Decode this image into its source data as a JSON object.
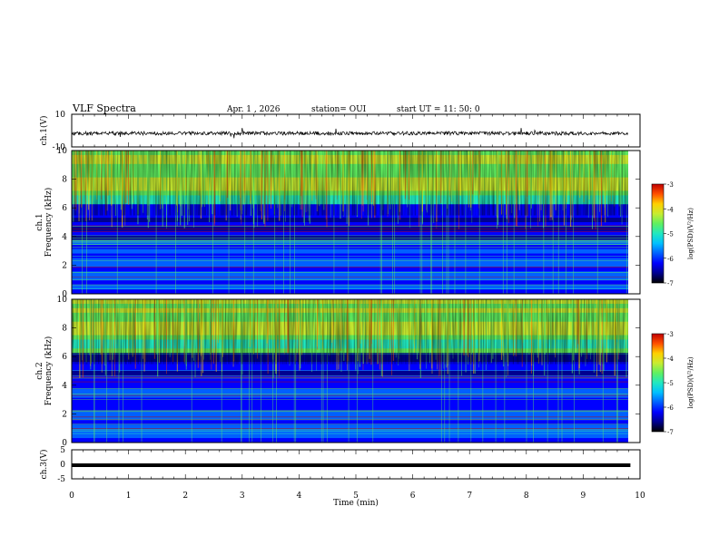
{
  "header": {
    "title": "VLF Spectra",
    "date": "Apr. 1 , 2026",
    "station": "station= OUI",
    "start": "start UT =  11: 50: 0"
  },
  "colors": {
    "colormap": [
      "#000000",
      "#00008f",
      "#0000ff",
      "#0060ff",
      "#00c0ff",
      "#20e8c0",
      "#60f060",
      "#c8ec30",
      "#ffd000",
      "#ff5000",
      "#c00000"
    ]
  },
  "chart_data": [
    {
      "type": "line",
      "panel": "waveform-ch1",
      "ylabel": "ch.1(V)",
      "ylim": [
        -10,
        10
      ],
      "yticks": [
        "10",
        "-10"
      ],
      "x": [
        0,
        0.5,
        1,
        1.5,
        2,
        2.5,
        3,
        3.5,
        4,
        4.5,
        5,
        5.5,
        6,
        6.5,
        7,
        7.5,
        8,
        8.5,
        9,
        9.5,
        9.83
      ],
      "y": [
        0.3,
        0.1,
        0.4,
        -0.2,
        0.2,
        0.0,
        0.3,
        -0.1,
        0.2,
        0.1,
        0.0,
        0.2,
        -0.1,
        0.3,
        0.1,
        0.0,
        0.2,
        0.1,
        0.0,
        0.1,
        0.1
      ]
    },
    {
      "type": "heatmap",
      "panel": "spectrogram-ch1",
      "ylabel": "ch.1 Frequency (kHz)",
      "xlim": [
        0,
        10
      ],
      "ylim": [
        0,
        10
      ],
      "yticks": [
        "0",
        "2",
        "4",
        "6",
        "8",
        "10"
      ],
      "colorbar": {
        "label": "log(PSD)(V²/Hz)",
        "ticks": [
          "-3",
          "-4",
          "-5",
          "-6",
          "-7"
        ],
        "range": [
          -7,
          -3
        ]
      }
    },
    {
      "type": "heatmap",
      "panel": "spectrogram-ch2",
      "ylabel": "ch.2 Frequency (kHz)",
      "xlim": [
        0,
        10
      ],
      "ylim": [
        0,
        10
      ],
      "yticks": [
        "0",
        "2",
        "4",
        "6",
        "8",
        "10"
      ],
      "colorbar": {
        "label": "log(PSD)(V²/Hz)",
        "ticks": [
          "-3",
          "-4",
          "-5",
          "-6",
          "-7"
        ],
        "range": [
          -7,
          -3
        ]
      }
    },
    {
      "type": "line",
      "panel": "waveform-ch3",
      "ylabel": "ch.3(V)",
      "ylim": [
        -5,
        5
      ],
      "yticks": [
        "5",
        "0",
        "-5"
      ],
      "x": [
        0,
        9.83
      ],
      "y": [
        -0.3,
        -0.3
      ],
      "xlabel": "Time (min)",
      "xticks": [
        "0",
        "1",
        "2",
        "3",
        "4",
        "5",
        "6",
        "7",
        "8",
        "9",
        "10"
      ]
    }
  ]
}
